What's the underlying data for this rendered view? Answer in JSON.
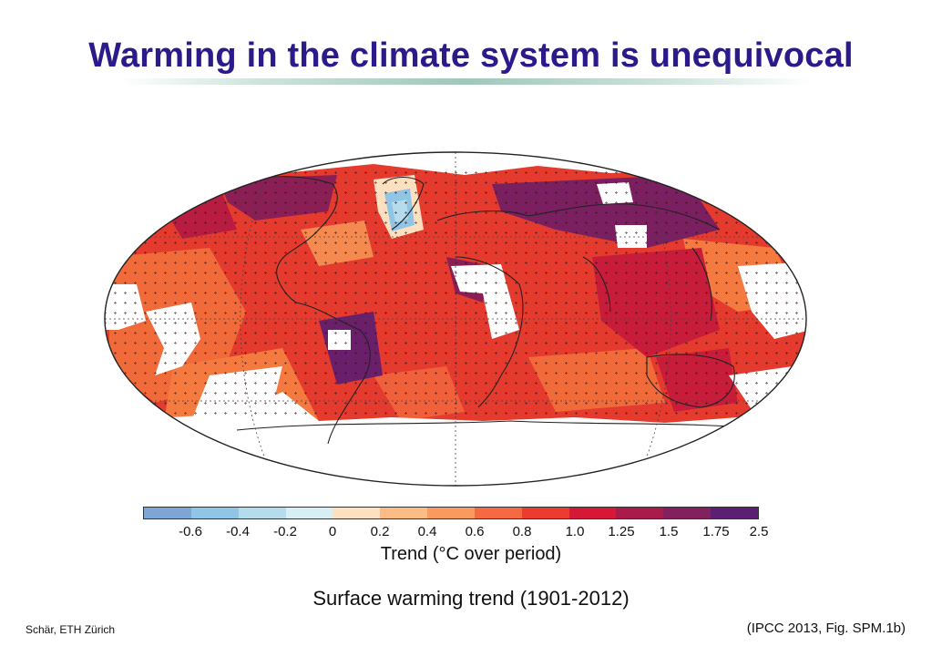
{
  "slide": {
    "title": "Warming in the climate system is unequivocal",
    "caption": "Surface warming trend (1901-2012)",
    "author": "Schär, ETH Zürich",
    "source": "(IPCC 2013, Fig. SPM.1b)"
  },
  "colorbar": {
    "label": "Trend (°C over period)",
    "ticks": [
      "-0.6",
      "-0.4",
      "-0.2",
      "0",
      "0.2",
      "0.4",
      "0.6",
      "0.8",
      "1.0",
      "1.25",
      "1.5",
      "1.75",
      "2.5"
    ],
    "colors": [
      "#7ea6d4",
      "#91c5e6",
      "#b4dcec",
      "#d6eef4",
      "#fde0bf",
      "#fdbb86",
      "#fb9a5e",
      "#f56a43",
      "#ec3b30",
      "#d41836",
      "#a81b4a",
      "#83205f",
      "#5b1f73"
    ]
  },
  "map": {
    "land_color": "#e43b2e",
    "no_data_color": "#ffffff",
    "outline_color": "#222222"
  }
}
